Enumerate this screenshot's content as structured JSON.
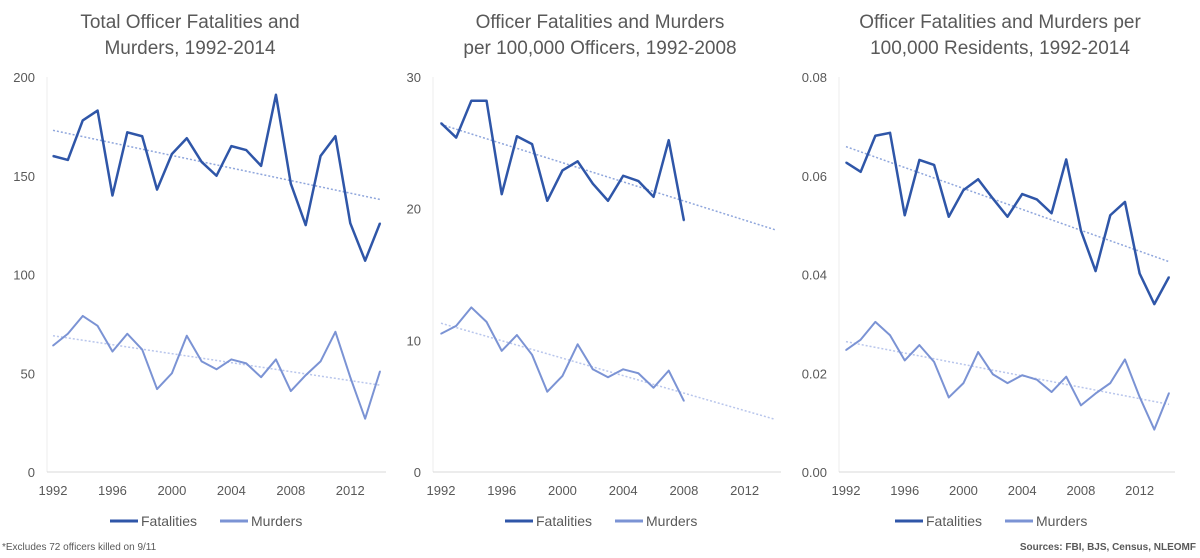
{
  "chart_data": [
    {
      "type": "line",
      "title": [
        "Total Officer Fatalities and",
        "Murders, 1992-2014"
      ],
      "x": [
        1992,
        1993,
        1994,
        1995,
        1996,
        1997,
        1998,
        1999,
        2000,
        2001,
        2002,
        2003,
        2004,
        2005,
        2006,
        2007,
        2008,
        2009,
        2010,
        2011,
        2012,
        2013,
        2014
      ],
      "xticks": [
        "1992",
        "1996",
        "2000",
        "2004",
        "2008",
        "2012"
      ],
      "ylim": [
        0,
        200
      ],
      "yticks": [
        "0",
        "50",
        "100",
        "150",
        "200"
      ],
      "grid": false,
      "legend_position": "bottom",
      "series": [
        {
          "name": "Fatalities",
          "color": "#2f56a8",
          "values": [
            160,
            158,
            178,
            183,
            140,
            172,
            170,
            143,
            161,
            169,
            157,
            150,
            165,
            163,
            155,
            191,
            146,
            125,
            160,
            170,
            126,
            107,
            126
          ],
          "trend": [
            173,
            138
          ]
        },
        {
          "name": "Murders",
          "color": "#7b93d4",
          "values": [
            64,
            70,
            79,
            74,
            61,
            70,
            62,
            42,
            50,
            69,
            56,
            52,
            57,
            55,
            48,
            57,
            41,
            49,
            56,
            71,
            48,
            27,
            51
          ],
          "trend": [
            69,
            44
          ]
        }
      ]
    },
    {
      "type": "line",
      "title": [
        "Officer Fatalities and Murders",
        "per 100,000 Officers, 1992-2008"
      ],
      "x": [
        1992,
        1993,
        1994,
        1995,
        1996,
        1997,
        1998,
        1999,
        2000,
        2001,
        2002,
        2003,
        2004,
        2005,
        2006,
        2007,
        2008
      ],
      "xticks": [
        "1992",
        "1996",
        "2000",
        "2004",
        "2008",
        "2012"
      ],
      "xlim": [
        1992,
        2014
      ],
      "ylim": [
        0,
        30
      ],
      "yticks": [
        "0",
        "10",
        "20",
        "30"
      ],
      "grid": false,
      "legend_position": "bottom",
      "series": [
        {
          "name": "Fatalities",
          "color": "#2f56a8",
          "values": [
            26.5,
            25.4,
            28.2,
            28.2,
            21.1,
            25.5,
            24.9,
            20.6,
            22.9,
            23.6,
            21.9,
            20.6,
            22.5,
            22.1,
            20.9,
            25.2,
            19.1
          ],
          "trend": [
            26.4,
            18.4
          ]
        },
        {
          "name": "Murders",
          "color": "#7b93d4",
          "values": [
            10.5,
            11.1,
            12.5,
            11.4,
            9.2,
            10.4,
            8.9,
            6.1,
            7.3,
            9.7,
            7.8,
            7.2,
            7.8,
            7.5,
            6.4,
            7.7,
            5.4
          ],
          "trend": [
            11.3,
            4.0
          ]
        }
      ]
    },
    {
      "type": "line",
      "title": [
        "Officer Fatalities and Murders per",
        "100,000 Residents, 1992-2014"
      ],
      "x": [
        1992,
        1993,
        1994,
        1995,
        1996,
        1997,
        1998,
        1999,
        2000,
        2001,
        2002,
        2003,
        2004,
        2005,
        2006,
        2007,
        2008,
        2009,
        2010,
        2011,
        2012,
        2013,
        2014
      ],
      "xticks": [
        "1992",
        "1996",
        "2000",
        "2004",
        "2008",
        "2012"
      ],
      "ylim": [
        0,
        0.08
      ],
      "yticks": [
        "0.00",
        "0.02",
        "0.04",
        "0.06",
        "0.08"
      ],
      "grid": false,
      "legend_position": "bottom",
      "series": [
        {
          "name": "Fatalities",
          "color": "#2f56a8",
          "values": [
            0.0627,
            0.0608,
            0.0681,
            0.0687,
            0.052,
            0.0632,
            0.0622,
            0.0517,
            0.0571,
            0.0593,
            0.0554,
            0.0517,
            0.0563,
            0.0552,
            0.0524,
            0.0633,
            0.0489,
            0.0407,
            0.052,
            0.0547,
            0.0402,
            0.034,
            0.0395
          ],
          "trend": [
            0.0659,
            0.0426
          ]
        },
        {
          "name": "Murders",
          "color": "#7b93d4",
          "values": [
            0.0247,
            0.0268,
            0.0304,
            0.0277,
            0.0226,
            0.0257,
            0.0223,
            0.0151,
            0.018,
            0.0243,
            0.0198,
            0.018,
            0.0196,
            0.0187,
            0.0162,
            0.0193,
            0.0135,
            0.0159,
            0.018,
            0.0228,
            0.0152,
            0.0086,
            0.016
          ],
          "trend": [
            0.0264,
            0.0137
          ]
        }
      ]
    }
  ],
  "footnote": "*Excludes 72 officers killed on 9/11",
  "sources": "Sources: FBI, BJS, Census, NLEOMF"
}
